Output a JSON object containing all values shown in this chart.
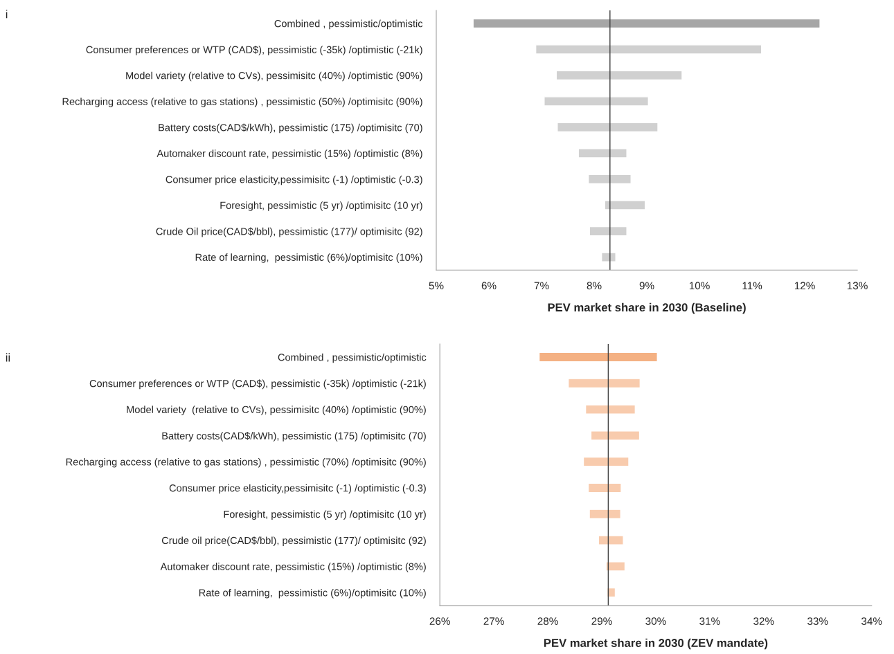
{
  "chart_data": [
    {
      "type": "bar",
      "orientation": "horizontal",
      "xlabel": "PEV market share in 2030 (Baseline)",
      "annotations": [
        "i"
      ],
      "categories": [
        "Combined , pessimistic/optimistic",
        "Consumer preferences or WTP (CAD$), pessimistic (-35k) /optimistic (-21k)",
        "Model variety (relative to CVs), pessimisitc (40%) /optimistic (90%)",
        "Recharging access (relative to gas stations) , pessimistic (50%) /optimisitc (90%)",
        "Battery costs(CAD$/kWh), pessimistic (175) /optimisitc (70)",
        "Automaker discount rate, pessimistic (15%) /optimistic (8%)",
        "Consumer price elasticity,pessimisitc (-1) /optimistic (-0.3)",
        "Foresight, pessimistic (5 yr) /optimisitc (10 yr)",
        "Crude Oil price(CAD$/bbl), pessimistic (177)/ optimisitc (92)",
        "Rate of learning,  pessimistic (6%)/optimisitc (10%)"
      ],
      "base": [
        5.7,
        6.89,
        7.28,
        7.05,
        7.3,
        7.7,
        7.89,
        8.2,
        7.91,
        8.14
      ],
      "values": [
        6.59,
        4.29,
        2.39,
        1.98,
        1.91,
        0.92,
        0.81,
        0.77,
        0.71,
        0.27
      ],
      "colors": [
        "#a6a6a6",
        "#d0d0d0",
        "#d0d0d0",
        "#d0d0d0",
        "#d0d0d0",
        "#d0d0d0",
        "#d0d0d0",
        "#d0d0d0",
        "#d0d0d0",
        "#d0d0d0"
      ],
      "xlim": [
        5,
        13
      ],
      "xticks": [
        {
          "value": 5,
          "label": "5%"
        },
        {
          "value": 6,
          "label": "6%"
        },
        {
          "value": 7,
          "label": "7%"
        },
        {
          "value": 8,
          "label": "8%"
        },
        {
          "value": 9,
          "label": "9%"
        },
        {
          "value": 10,
          "label": "10%"
        },
        {
          "value": 11,
          "label": "11%"
        },
        {
          "value": 12,
          "label": "12%"
        },
        {
          "value": 13,
          "label": "13%"
        }
      ],
      "ref_lines": [
        {
          "axis": "x",
          "value": 8.3,
          "color": "#404040"
        }
      ],
      "grid": false,
      "legend": false
    },
    {
      "type": "bar",
      "orientation": "horizontal",
      "xlabel": "PEV market share in 2030 (ZEV mandate)",
      "annotations": [
        "ii"
      ],
      "categories": [
        "Combined , pessimistic/optimistic",
        "Consumer preferences or WTP (CAD$), pessimistic (-35k) /optimistic (-21k)",
        "Model variety  (relative to CVs), pessimisitc (40%) /optimistic (90%)",
        "Battery costs(CAD$/kWh), pessimistic (175) /optimisitc (70)",
        "Recharging access (relative to gas stations) , pessimistic (70%) /optimisitc (90%)",
        "Consumer price elasticity,pessimisitc (-1) /optimistic (-0.3)",
        "Foresight, pessimistic (5 yr) /optimisitc (10 yr)",
        "Crude oil price(CAD$/bbl), pessimistic (177)/ optimisitc (92)",
        "Automaker discount rate, pessimistic (15%) /optimistic (8%)",
        "Rate of learning,  pessimistic (6%)/optimisitc (10%)"
      ],
      "base": [
        27.84,
        28.38,
        28.7,
        28.8,
        28.66,
        28.75,
        28.77,
        28.94,
        29.08,
        29.1
      ],
      "values": [
        2.19,
        1.33,
        0.92,
        0.9,
        0.84,
        0.61,
        0.58,
        0.46,
        0.35,
        0.15
      ],
      "colors": [
        "#f4b183",
        "#f8cbad",
        "#f8cbad",
        "#f8cbad",
        "#f8cbad",
        "#f8cbad",
        "#f8cbad",
        "#f8cbad",
        "#f8cbad",
        "#f8cbad"
      ],
      "xlim": [
        26,
        34
      ],
      "xticks": [
        {
          "value": 26,
          "label": "26%"
        },
        {
          "value": 27,
          "label": "27%"
        },
        {
          "value": 28,
          "label": "28%"
        },
        {
          "value": 29,
          "label": "29%"
        },
        {
          "value": 30,
          "label": "30%"
        },
        {
          "value": 31,
          "label": "31%"
        },
        {
          "value": 32,
          "label": "32%"
        },
        {
          "value": 33,
          "label": "33%"
        },
        {
          "value": 34,
          "label": "34%"
        }
      ],
      "ref_lines": [
        {
          "axis": "x",
          "value": 29.12,
          "color": "#404040"
        }
      ],
      "grid": false,
      "legend": false
    }
  ]
}
